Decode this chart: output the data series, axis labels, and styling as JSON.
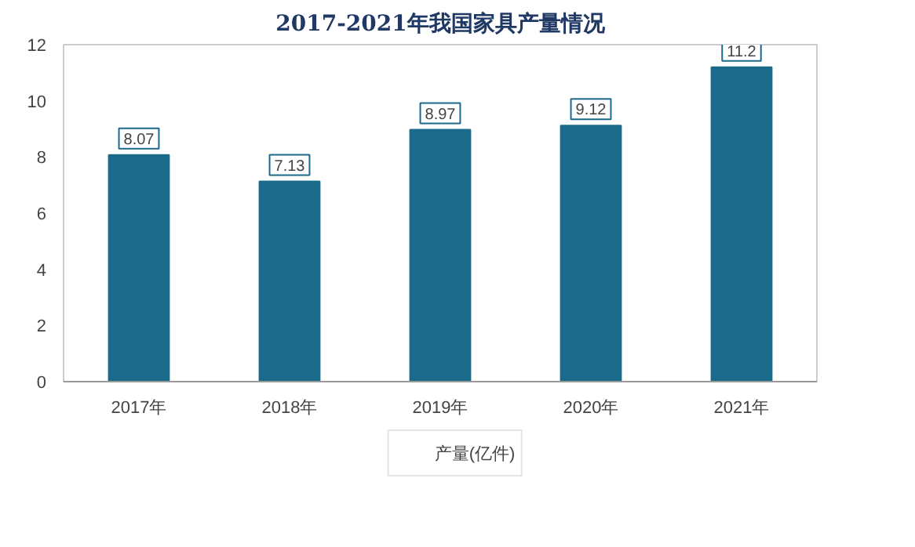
{
  "chart_data": {
    "type": "bar",
    "title": "2017-2021年我国家具产量情况",
    "categories": [
      "2017年",
      "2018年",
      "2019年",
      "2020年",
      "2021年"
    ],
    "series": [
      {
        "name": "产量(亿件)",
        "color": "#1b6a8c",
        "values": [
          8.07,
          7.13,
          8.97,
          9.12,
          11.2
        ]
      }
    ],
    "ylim": [
      0,
      12
    ],
    "yticks": [
      0,
      2,
      4,
      6,
      8,
      10,
      12
    ],
    "grid": false,
    "legend": "bottom",
    "data_labels": true
  }
}
